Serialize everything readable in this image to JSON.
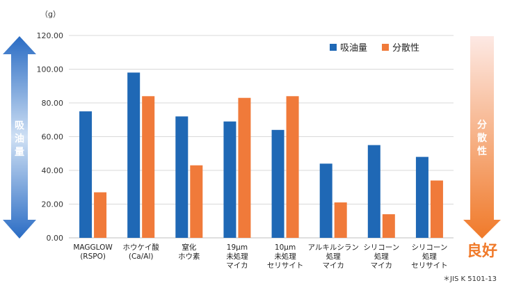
{
  "chart_data": {
    "type": "bar",
    "unit": "（g）",
    "categories": [
      [
        "MAGGLOW",
        "(RSPO)"
      ],
      [
        "ホウケイ酸",
        "(Ca/Al)"
      ],
      [
        "窒化",
        "ホウ素"
      ],
      [
        "19μm",
        "未処理",
        "マイカ"
      ],
      [
        "10μm",
        "未処理",
        "セリサイト"
      ],
      [
        "アルキルシラン",
        "処理",
        "マイカ"
      ],
      [
        "シリコーン",
        "処理",
        "マイカ"
      ],
      [
        "シリコーン",
        "処理",
        "セリサイト"
      ]
    ],
    "series": [
      {
        "name": "吸油量",
        "color": "#1f68b5",
        "values": [
          75,
          98,
          72,
          69,
          64,
          44,
          55,
          48
        ]
      },
      {
        "name": "分散性",
        "color": "#f07a3a",
        "values": [
          27,
          84,
          43,
          83,
          84,
          21,
          14,
          34
        ]
      }
    ],
    "ylim": [
      0,
      120
    ],
    "yticks": [
      "0.00",
      "20.00",
      "40.00",
      "60.00",
      "80.00",
      "100.00",
      "120.00"
    ],
    "grid": true,
    "legend": "top-right",
    "left_arrow_label": "吸油量",
    "right_arrow_label": "分散性",
    "right_arrow_bottom_label": "良好",
    "note": "＊JIS K 5101-13"
  }
}
